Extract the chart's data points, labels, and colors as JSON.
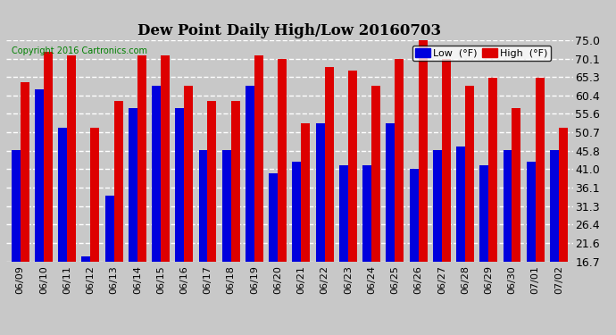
{
  "title": "Dew Point Daily High/Low 20160703",
  "copyright": "Copyright 2016 Cartronics.com",
  "dates": [
    "06/09",
    "06/10",
    "06/11",
    "06/12",
    "06/13",
    "06/14",
    "06/15",
    "06/16",
    "06/17",
    "06/18",
    "06/19",
    "06/20",
    "06/21",
    "06/22",
    "06/23",
    "06/24",
    "06/25",
    "06/26",
    "06/27",
    "06/28",
    "06/29",
    "06/30",
    "07/01",
    "07/02"
  ],
  "low": [
    46,
    62,
    52,
    18,
    34,
    57,
    63,
    57,
    46,
    46,
    63,
    40,
    43,
    53,
    42,
    42,
    53,
    41,
    46,
    47,
    42,
    46,
    43,
    46
  ],
  "high": [
    64,
    72,
    71,
    52,
    59,
    71,
    71,
    63,
    59,
    59,
    71,
    70,
    53,
    68,
    67,
    63,
    70,
    75,
    70,
    63,
    65,
    57,
    65,
    52
  ],
  "ylim_min": 16.7,
  "ylim_max": 75.0,
  "yticks": [
    16.7,
    21.6,
    26.4,
    31.3,
    36.1,
    41.0,
    45.8,
    50.7,
    55.6,
    60.4,
    65.3,
    70.1,
    75.0
  ],
  "bar_width": 0.38,
  "low_color": "#0000dd",
  "high_color": "#dd0000",
  "bg_color": "#c8c8c8",
  "plot_bg_color": "#c8c8c8",
  "grid_color": "#ffffff",
  "legend_low_label": "Low  (°F)",
  "legend_high_label": "High  (°F)"
}
